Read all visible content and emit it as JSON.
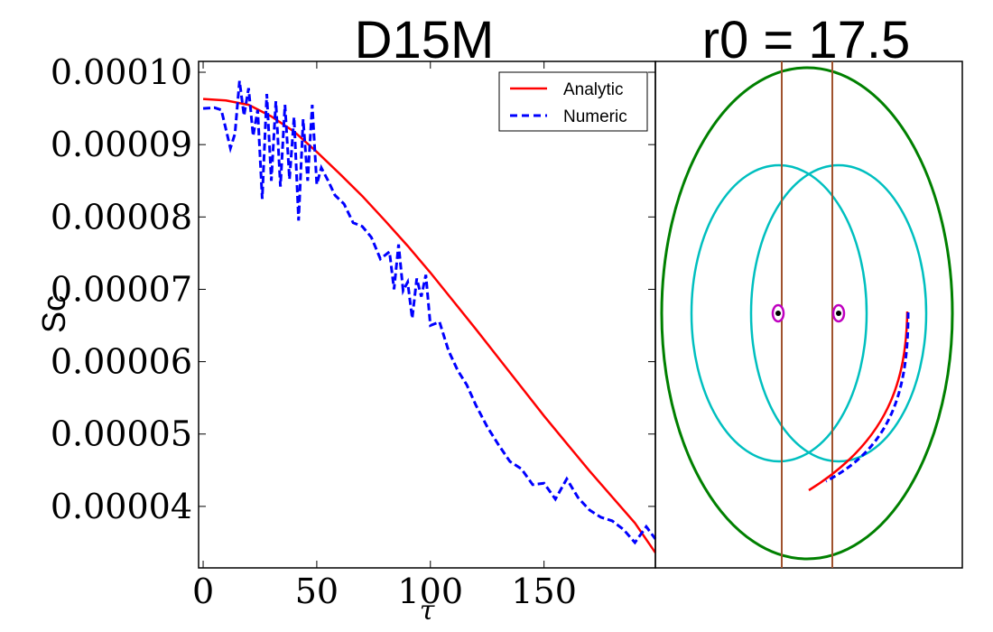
{
  "chart_data": [
    {
      "type": "line",
      "title": "D15M",
      "xlabel": "τ",
      "ylabel": "Sc",
      "xlim": [
        -2,
        199
      ],
      "ylim": [
        3.15e-05,
        0.0001015
      ],
      "xticks": [
        0,
        50,
        100,
        150
      ],
      "xtick_labels": [
        "0",
        "50",
        "100",
        "150"
      ],
      "yticks": [
        4e-05,
        5e-05,
        6e-05,
        7e-05,
        8e-05,
        9e-05,
        0.0001
      ],
      "ytick_labels": [
        "0.00004",
        "0.00005",
        "0.00006",
        "0.00007",
        "0.00008",
        "0.00009",
        "0.00010"
      ],
      "grid": false,
      "legend_position": "top-right",
      "series": [
        {
          "name": "Analytic",
          "color": "#ff0000",
          "style": "solid",
          "x": [
            0,
            10,
            20,
            30,
            40,
            50,
            60,
            70,
            80,
            90,
            100,
            110,
            120,
            130,
            140,
            150,
            160,
            170,
            180,
            190,
            199
          ],
          "y": [
            9.63e-05,
            9.61e-05,
            9.55e-05,
            9.39e-05,
            9.18e-05,
            8.9e-05,
            8.6e-05,
            8.29e-05,
            7.95e-05,
            7.6e-05,
            7.23e-05,
            6.84e-05,
            6.45e-05,
            6.05e-05,
            5.65e-05,
            5.25e-05,
            4.87e-05,
            4.49e-05,
            4.13e-05,
            3.77e-05,
            3.36e-05
          ]
        },
        {
          "name": "Numeric",
          "color": "#0000ff",
          "style": "dashed",
          "x": [
            0,
            5,
            8,
            12,
            14,
            16,
            18,
            20,
            22,
            24,
            26,
            28,
            30,
            32,
            34,
            36,
            38,
            40,
            42,
            44,
            46,
            48,
            50,
            52,
            55,
            58,
            62,
            66,
            70,
            74,
            78,
            82,
            84,
            86,
            88,
            90,
            92,
            94,
            96,
            98,
            100,
            104,
            108,
            112,
            116,
            120,
            125,
            130,
            135,
            140,
            145,
            150,
            155,
            160,
            165,
            170,
            175,
            180,
            185,
            190,
            195,
            199
          ],
          "y": [
            9.5e-05,
            9.51e-05,
            9.48e-05,
            8.95e-05,
            9.15e-05,
            9.88e-05,
            9.4e-05,
            9.78e-05,
            9.12e-05,
            9.48e-05,
            8.25e-05,
            9.7e-05,
            8.5e-05,
            9.6e-05,
            8.42e-05,
            9.55e-05,
            8.52e-05,
            9.38e-05,
            7.95e-05,
            9.35e-05,
            8.5e-05,
            9.55e-05,
            8.45e-05,
            8.68e-05,
            8.5e-05,
            8.3e-05,
            8.18e-05,
            7.92e-05,
            7.87e-05,
            7.72e-05,
            7.42e-05,
            7.52e-05,
            7e-05,
            7.62e-05,
            6.98e-05,
            7.1e-05,
            6.6e-05,
            7.15e-05,
            6.9e-05,
            7.2e-05,
            6.5e-05,
            6.55e-05,
            6.15e-05,
            5.88e-05,
            5.68e-05,
            5.4e-05,
            5.1e-05,
            4.85e-05,
            4.62e-05,
            4.52e-05,
            4.3e-05,
            4.32e-05,
            4.1e-05,
            4.38e-05,
            4.12e-05,
            3.95e-05,
            3.85e-05,
            3.8e-05,
            3.68e-05,
            3.5e-05,
            3.72e-05,
            3.55e-05
          ]
        }
      ]
    },
    {
      "type": "diagram",
      "title": "r0 = 17.5",
      "shapes": [
        {
          "kind": "ellipse",
          "name": "outer-ellipse",
          "color": "#008000"
        },
        {
          "kind": "ellipse",
          "name": "left-circle",
          "color": "#00bfbf"
        },
        {
          "kind": "ellipse",
          "name": "right-circle",
          "color": "#00bfbf"
        },
        {
          "kind": "line",
          "name": "left-vertical-line",
          "color": "#a0522d"
        },
        {
          "kind": "line",
          "name": "right-vertical-line",
          "color": "#a0522d"
        },
        {
          "kind": "marker",
          "name": "left-body",
          "color": "#bf00bf"
        },
        {
          "kind": "marker",
          "name": "right-body",
          "color": "#bf00bf"
        },
        {
          "kind": "trajectory",
          "name": "analytic-trajectory",
          "color": "#ff0000",
          "style": "solid"
        },
        {
          "kind": "trajectory",
          "name": "numeric-trajectory",
          "color": "#0000ff",
          "style": "dashed"
        }
      ]
    }
  ]
}
